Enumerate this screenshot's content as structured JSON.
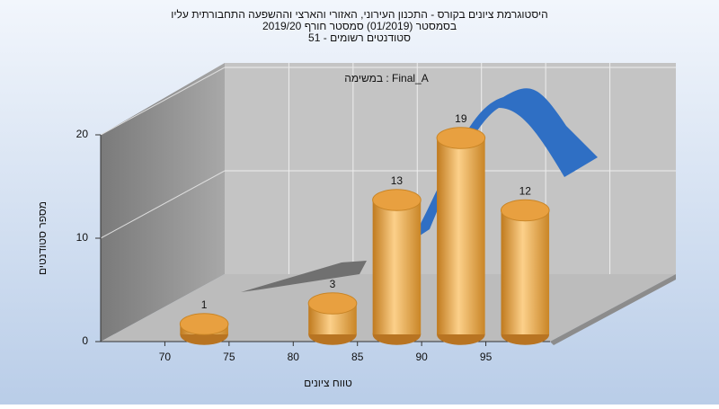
{
  "chart_data": {
    "type": "histogram",
    "title": [
      "היסטוגרמת ציונים בקורס - התכנון העירוני, האזורי והארצי וההשפעה התחבורתית עליו",
      "בסמסטר  (01/2019)  סמסטר חורף 2019/20",
      "סטודנטים רשומים - 51"
    ],
    "annotation": "במשימה : Final_A",
    "x_label": "טווח ציונים",
    "y_label": "מספר סטודנטים",
    "bins": [
      70,
      75,
      80,
      85,
      90,
      95,
      100
    ],
    "values": [
      1,
      0,
      3,
      13,
      19,
      12
    ],
    "color": "#e8a040",
    "xlim": [
      65,
      100
    ],
    "xticks": [
      70,
      75,
      80,
      85,
      90,
      95
    ],
    "ylim": [
      0,
      20
    ],
    "yticks": [
      0,
      10,
      20
    ],
    "grid": true
  }
}
